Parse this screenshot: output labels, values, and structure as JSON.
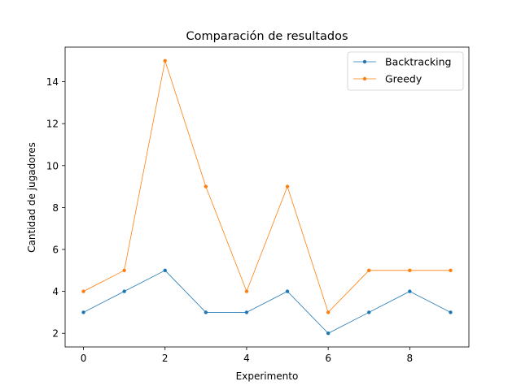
{
  "chart_data": {
    "type": "line",
    "title": "Comparación de resultados",
    "xlabel": "Experimento",
    "ylabel": "Cantidad de jugadores",
    "x": [
      0,
      1,
      2,
      3,
      4,
      5,
      6,
      7,
      8,
      9
    ],
    "xlim": [
      -0.45,
      9.45
    ],
    "ylim": [
      1.35,
      15.65
    ],
    "xticks": [
      0,
      2,
      4,
      6,
      8
    ],
    "yticks": [
      2,
      4,
      6,
      8,
      10,
      12,
      14
    ],
    "grid": false,
    "legend_position": "top-right",
    "series": [
      {
        "name": "Backtracking",
        "color": "#1f77b4",
        "values": [
          3,
          4,
          5,
          3,
          3,
          4,
          2,
          3,
          4,
          3
        ]
      },
      {
        "name": "Greedy",
        "color": "#ff7f0e",
        "values": [
          4,
          5,
          15,
          9,
          4,
          9,
          3,
          5,
          5,
          5
        ]
      }
    ]
  }
}
